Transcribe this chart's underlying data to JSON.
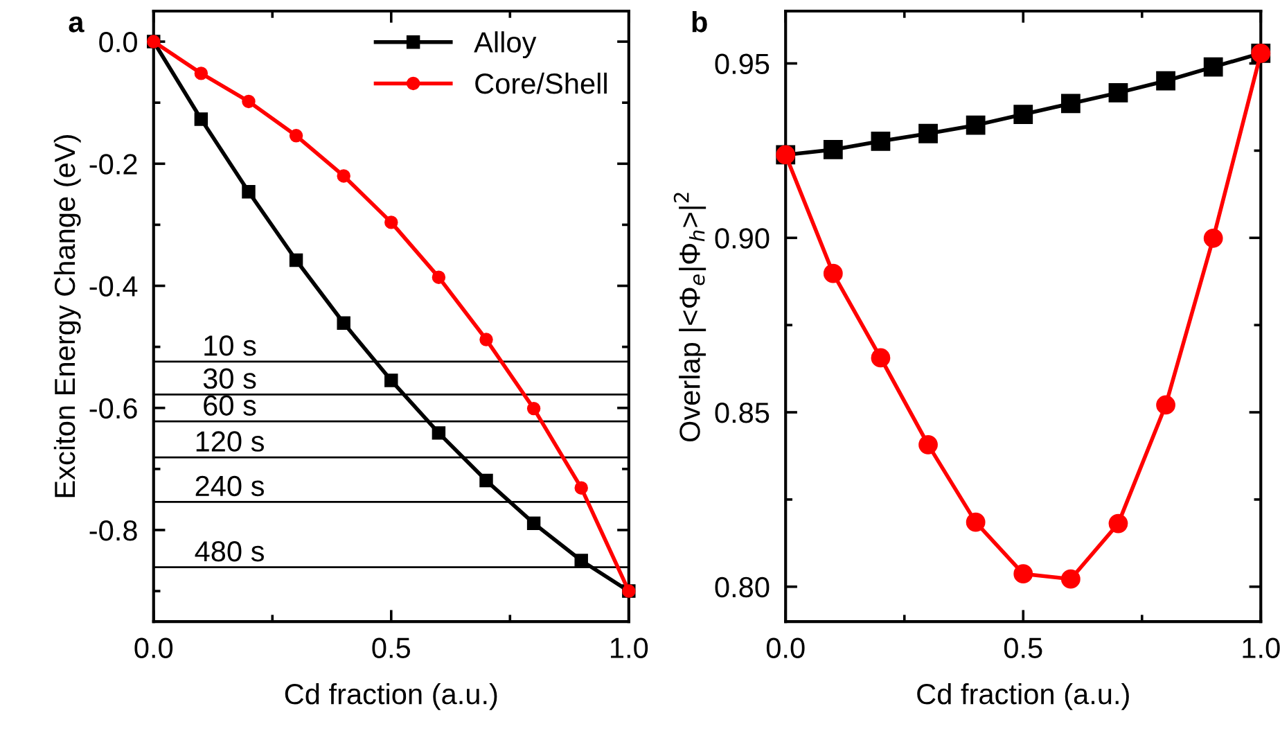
{
  "chart_data": [
    {
      "type": "line",
      "title": "a",
      "xlabel": "Cd fraction (a.u.)",
      "ylabel": "Exciton Energy Change (eV)",
      "x": [
        0.0,
        0.1,
        0.2,
        0.3,
        0.4,
        0.5,
        0.6,
        0.7,
        0.8,
        0.9,
        1.0
      ],
      "series": [
        {
          "name": "Alloy",
          "color": "#000000",
          "marker": "square",
          "values": [
            0.0,
            -0.127,
            -0.246,
            -0.358,
            -0.461,
            -0.555,
            -0.641,
            -0.719,
            -0.789,
            -0.85,
            -0.9
          ]
        },
        {
          "name": "Core/Shell",
          "color": "#ff0000",
          "marker": "circle",
          "values": [
            0.0,
            -0.052,
            -0.098,
            -0.154,
            -0.22,
            -0.296,
            -0.386,
            -0.488,
            -0.601,
            -0.731,
            -0.9
          ]
        }
      ],
      "ref_lines": [
        {
          "axis": "y",
          "value": -0.524,
          "label": "10 s",
          "color": "#000000"
        },
        {
          "axis": "y",
          "value": -0.578,
          "label": "30 s",
          "color": "#000000"
        },
        {
          "axis": "y",
          "value": -0.622,
          "label": "60 s",
          "color": "#000000"
        },
        {
          "axis": "y",
          "value": -0.681,
          "label": "120 s",
          "color": "#000000"
        },
        {
          "axis": "y",
          "value": -0.754,
          "label": "240 s",
          "color": "#000000"
        },
        {
          "axis": "y",
          "value": -0.861,
          "label": "480 s",
          "color": "#000000"
        }
      ],
      "xlim": [
        0,
        1
      ],
      "xticks": [
        {
          "value": 0,
          "label": "0.0"
        },
        {
          "value": 0.5,
          "label": "0.5"
        },
        {
          "value": 1,
          "label": "1.0"
        }
      ],
      "ylim": [
        -0.95,
        0.05
      ],
      "yticks": [
        {
          "value": 0,
          "label": "0.0"
        },
        {
          "value": -0.2,
          "label": "-0.2"
        },
        {
          "value": -0.4,
          "label": "-0.4"
        },
        {
          "value": -0.6,
          "label": "-0.6"
        },
        {
          "value": -0.8,
          "label": "-0.8"
        }
      ],
      "legend": "top right",
      "grid": false
    },
    {
      "type": "line",
      "title": "b",
      "xlabel": "Cd fraction (a.u.)",
      "ylabel": "Overlap |<Φ$_{e}$|Φ$_{h}$>|$^{2}$",
      "x": [
        0.0,
        0.1,
        0.2,
        0.3,
        0.4,
        0.5,
        0.6,
        0.7,
        0.8,
        0.9,
        1.0
      ],
      "series": [
        {
          "color": "#000000",
          "marker": "square",
          "values": [
            0.9238,
            0.9253,
            0.9277,
            0.9299,
            0.9323,
            0.9354,
            0.9385,
            0.9416,
            0.945,
            0.949,
            0.9529
          ]
        },
        {
          "color": "#ff0000",
          "marker": "circle",
          "values": [
            0.9238,
            0.8898,
            0.8656,
            0.8407,
            0.8185,
            0.8037,
            0.8022,
            0.8181,
            0.8521,
            0.8999,
            0.9529
          ]
        }
      ],
      "xlim": [
        0,
        1
      ],
      "xticks": [
        {
          "value": 0,
          "label": "0.0"
        },
        {
          "value": 0.5,
          "label": "0.5"
        },
        {
          "value": 1,
          "label": "1.0"
        }
      ],
      "ylim": [
        0.79,
        0.965
      ],
      "yticks": [
        {
          "value": 0.8,
          "label": "0.80"
        },
        {
          "value": 0.85,
          "label": "0.85"
        },
        {
          "value": 0.9,
          "label": "0.90"
        },
        {
          "value": 0.95,
          "label": "0.95"
        }
      ],
      "legend": false,
      "grid": false
    }
  ]
}
